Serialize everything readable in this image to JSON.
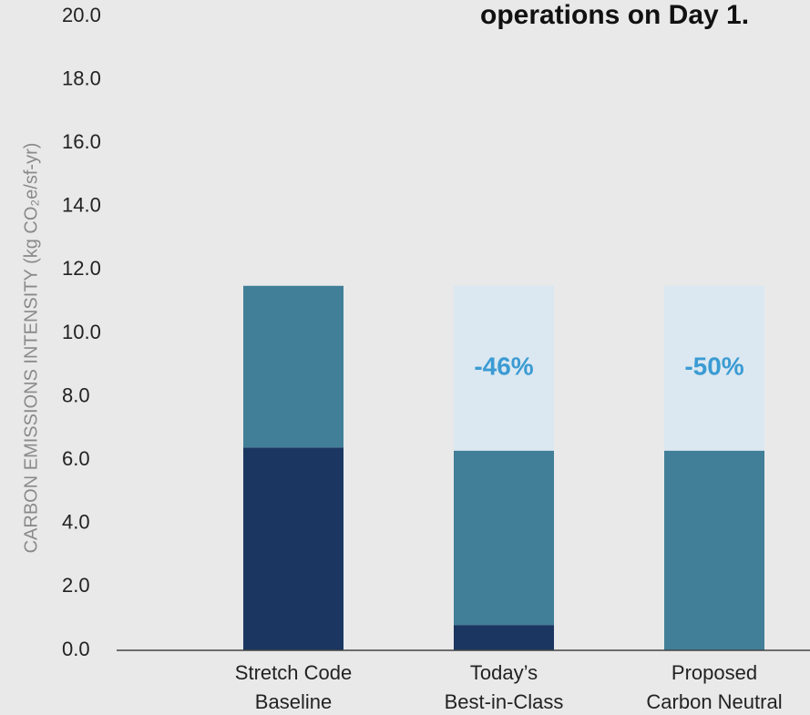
{
  "chart_data": {
    "type": "stacked_bar",
    "title": "operations on Day 1.",
    "y_axis_label": "CARBON EMISSIONS INTENSITY (kg CO₂e/sf-yr)",
    "categories": [
      [
        "Stretch Code",
        "Baseline"
      ],
      [
        "Today’s",
        "Best-in-Class"
      ],
      [
        "Proposed",
        "Carbon Neutral"
      ]
    ],
    "series": [
      {
        "color": "#1b3761",
        "values": [
          6.4,
          0.8,
          0
        ]
      },
      {
        "color": "#417f98",
        "values": [
          5.1,
          5.5,
          6.3
        ]
      },
      {
        "color": "#dbe8f1",
        "values": [
          0,
          5.2,
          5.2
        ]
      }
    ],
    "annotations": [
      null,
      "-46%",
      "-50%"
    ],
    "ylim": [
      0,
      20
    ],
    "yticks": [
      {
        "value": 0,
        "label": "0.0"
      },
      {
        "value": 2,
        "label": "2.0"
      },
      {
        "value": 4,
        "label": "4.0"
      },
      {
        "value": 6,
        "label": "6.0"
      },
      {
        "value": 8,
        "label": "8.0"
      },
      {
        "value": 10,
        "label": "10.0"
      },
      {
        "value": 12,
        "label": "12.0"
      },
      {
        "value": 14,
        "label": "14.0"
      },
      {
        "value": 16,
        "label": "16.0"
      },
      {
        "value": 18,
        "label": "18.0"
      },
      {
        "value": 20,
        "label": "20.0"
      }
    ],
    "grid": false
  }
}
